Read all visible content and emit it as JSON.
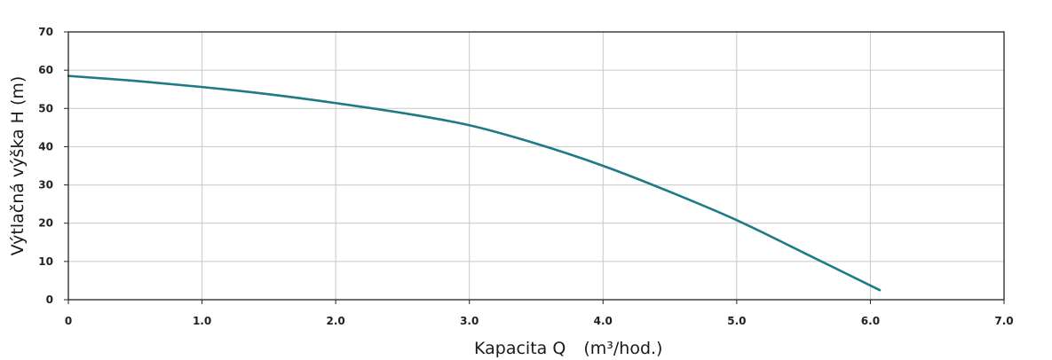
{
  "chart_data": {
    "type": "line",
    "xlabel": "Kapacita Q",
    "xunit": "(m³/hod.)",
    "ylabel": "Výtlačná výška H (m)",
    "xlim": [
      0,
      7
    ],
    "ylim": [
      0,
      70
    ],
    "x_ticks": [
      0,
      1,
      2,
      3,
      4,
      5,
      6,
      7
    ],
    "x_tick_labels": [
      "0",
      "1.0",
      "2.0",
      "3.0",
      "4.0",
      "5.0",
      "6.0",
      "7.0"
    ],
    "y_ticks": [
      0,
      10,
      20,
      30,
      40,
      50,
      60,
      70
    ],
    "y_tick_labels": [
      "0",
      "10",
      "20",
      "30",
      "40",
      "50",
      "60",
      "70"
    ],
    "grid": true,
    "series": [
      {
        "color": "#1e7a85",
        "x": [
          0,
          0.5,
          1.0,
          1.5,
          2.0,
          2.5,
          3.0,
          3.5,
          4.0,
          4.5,
          5.0,
          5.5,
          6.07
        ],
        "y": [
          58.5,
          57.2,
          55.6,
          53.7,
          51.4,
          48.8,
          45.6,
          40.8,
          35.0,
          28.2,
          20.8,
          12.3,
          2.5
        ]
      }
    ]
  }
}
